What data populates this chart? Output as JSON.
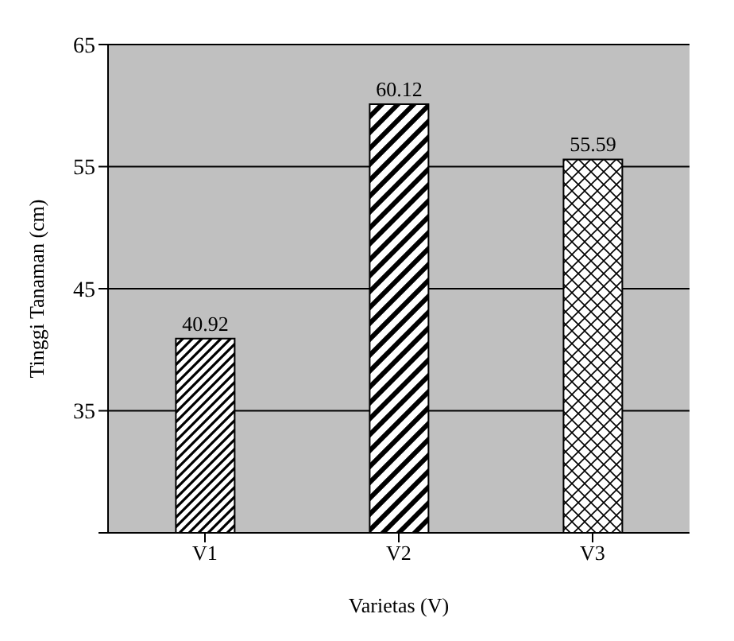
{
  "chart_data": {
    "type": "bar",
    "xlabel": "Varietas  (V)",
    "ylabel": "Tinggi Tanaman (cm)",
    "categories": [
      "V1",
      "V2",
      "V3"
    ],
    "values": [
      40.92,
      60.12,
      55.59
    ],
    "colors": [
      "#000000",
      "#000000",
      "#000000"
    ],
    "ylim": [
      25,
      65
    ],
    "yticks": [
      {
        "value": 25,
        "label": null
      },
      35,
      45,
      55,
      65
    ],
    "grid": "y",
    "data_labels": true
  }
}
